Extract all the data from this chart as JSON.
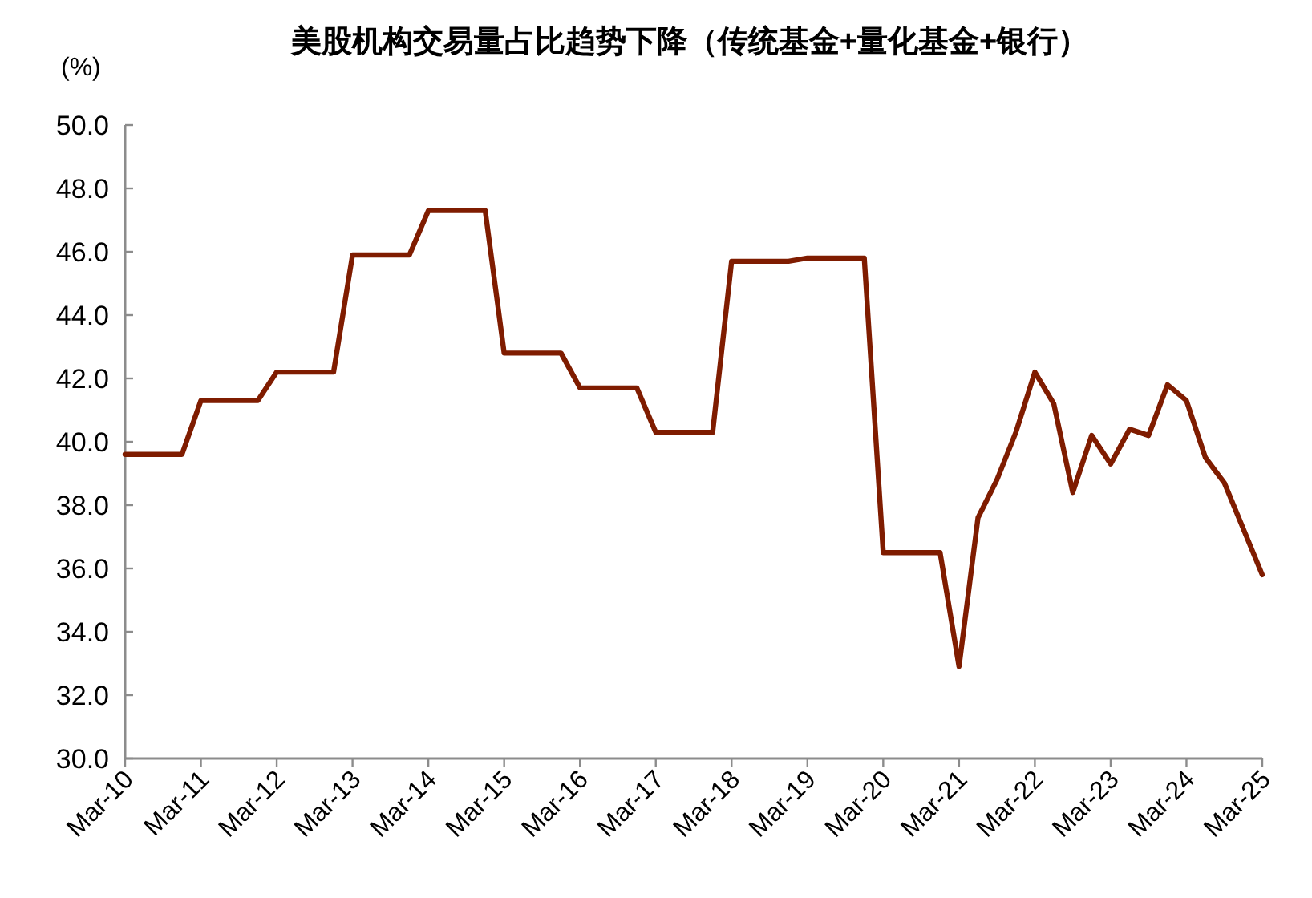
{
  "chart_data": {
    "type": "line",
    "title": "美股机构交易量占比趋势下降（传统基金+量化基金+银行）",
    "ylabel": "(%)",
    "color": "#7f1c00",
    "x": [
      "2010-03",
      "2010-12",
      "2011-03",
      "2011-12",
      "2012-03",
      "2012-12",
      "2013-03",
      "2013-12",
      "2014-03",
      "2014-12",
      "2015-03",
      "2015-12",
      "2016-03",
      "2016-12",
      "2017-03",
      "2017-12",
      "2018-03",
      "2018-12",
      "2019-03",
      "2019-12",
      "2020-03",
      "2020-12",
      "2021-03",
      "2021-06",
      "2021-09",
      "2021-12",
      "2022-03",
      "2022-06",
      "2022-09",
      "2022-12",
      "2023-03",
      "2023-06",
      "2023-09",
      "2023-12",
      "2024-03",
      "2024-06",
      "2024-09",
      "2025-03"
    ],
    "values": [
      39.6,
      39.6,
      41.3,
      41.3,
      42.2,
      42.2,
      45.9,
      45.9,
      47.3,
      47.3,
      42.8,
      42.8,
      41.7,
      41.7,
      40.3,
      40.3,
      45.7,
      45.7,
      45.8,
      45.8,
      36.5,
      36.5,
      32.9,
      37.6,
      38.8,
      40.3,
      42.2,
      41.2,
      38.4,
      40.2,
      39.3,
      40.4,
      40.2,
      41.8,
      41.3,
      39.5,
      38.7,
      35.8
    ],
    "xlim": [
      "2010-03",
      "2025-03"
    ],
    "xticks": [
      {
        "value": "2010-03",
        "label": "Mar-10"
      },
      {
        "value": "2011-03",
        "label": "Mar-11"
      },
      {
        "value": "2012-03",
        "label": "Mar-12"
      },
      {
        "value": "2013-03",
        "label": "Mar-13"
      },
      {
        "value": "2014-03",
        "label": "Mar-14"
      },
      {
        "value": "2015-03",
        "label": "Mar-15"
      },
      {
        "value": "2016-03",
        "label": "Mar-16"
      },
      {
        "value": "2017-03",
        "label": "Mar-17"
      },
      {
        "value": "2018-03",
        "label": "Mar-18"
      },
      {
        "value": "2019-03",
        "label": "Mar-19"
      },
      {
        "value": "2020-03",
        "label": "Mar-20"
      },
      {
        "value": "2021-03",
        "label": "Mar-21"
      },
      {
        "value": "2022-03",
        "label": "Mar-22"
      },
      {
        "value": "2023-03",
        "label": "Mar-23"
      },
      {
        "value": "2024-03",
        "label": "Mar-24"
      },
      {
        "value": "2025-03",
        "label": "Mar-25"
      }
    ],
    "ylim": [
      30,
      50
    ],
    "yticks": [
      {
        "value": 30,
        "label": "30.0"
      },
      {
        "value": 32,
        "label": "32.0"
      },
      {
        "value": 34,
        "label": "34.0"
      },
      {
        "value": 36,
        "label": "36.0"
      },
      {
        "value": 38,
        "label": "38.0"
      },
      {
        "value": 40,
        "label": "40.0"
      },
      {
        "value": 42,
        "label": "42.0"
      },
      {
        "value": 44,
        "label": "44.0"
      },
      {
        "value": 46,
        "label": "46.0"
      },
      {
        "value": 48,
        "label": "48.0"
      },
      {
        "value": 50,
        "label": "50.0"
      }
    ]
  }
}
